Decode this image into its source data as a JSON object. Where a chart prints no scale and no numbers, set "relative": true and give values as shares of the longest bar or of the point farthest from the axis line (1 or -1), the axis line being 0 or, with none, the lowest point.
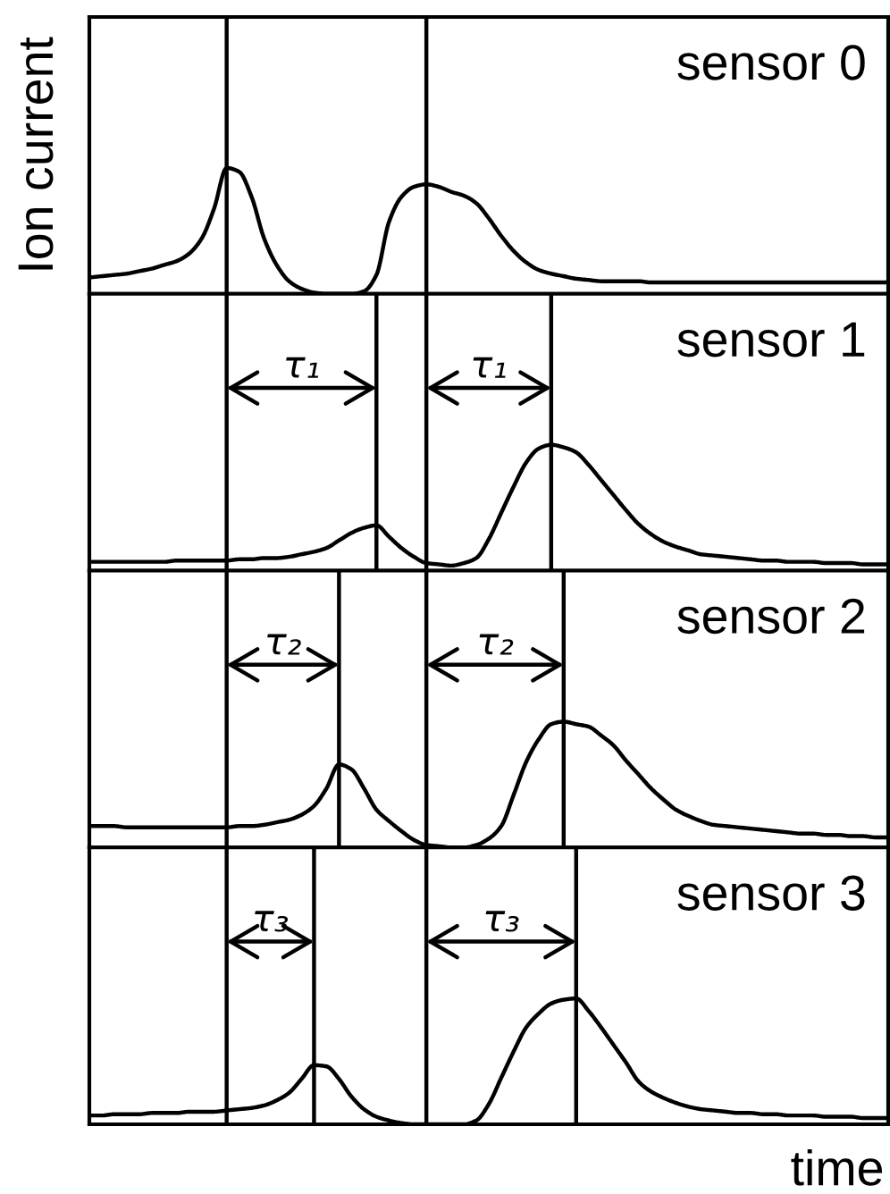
{
  "chart_data": [
    {
      "type": "line",
      "relative": true,
      "grid": "x",
      "title": "sensor 0",
      "ylabel": "Ion current",
      "categories": [
        null,
        null,
        null,
        null,
        null,
        null,
        null,
        null,
        null,
        null,
        null,
        null,
        null,
        null,
        null,
        null,
        null,
        null,
        null,
        null,
        null,
        null,
        null,
        null,
        null,
        null,
        null,
        null,
        null,
        null,
        null,
        null,
        null,
        null,
        null,
        null,
        null,
        null,
        null,
        null,
        null,
        null,
        null,
        null,
        null,
        null,
        null,
        null,
        null,
        null,
        null,
        null,
        null,
        null,
        null,
        null,
        null,
        null,
        null,
        null,
        null,
        null,
        null,
        null,
        null
      ],
      "series": [
        {
          "color": "#000000",
          "values": [
            0.13,
            0.14,
            0.15,
            0.16,
            0.18,
            0.2,
            0.23,
            0.26,
            0.32,
            0.44,
            0.68,
            1.0,
            0.97,
            0.77,
            0.44,
            0.23,
            0.1,
            0.04,
            0.01,
            0,
            0,
            0,
            0.02,
            0.15,
            0.57,
            0.77,
            0.85,
            0.87,
            0.85,
            0.81,
            0.78,
            0.72,
            0.6,
            0.46,
            0.34,
            0.25,
            0.19,
            0.16,
            0.14,
            0.12,
            0.11,
            0.1,
            0.1,
            0.1,
            0.1,
            0.09,
            0.09,
            0.09,
            0.09,
            0.09,
            0.09,
            0.09,
            0.09,
            0.09,
            0.09,
            0.09,
            0.09,
            0.09,
            0.09,
            0.09,
            0.09,
            0.09,
            0.09,
            0.09,
            0.09
          ]
        }
      ]
    },
    {
      "type": "line",
      "relative": true,
      "grid": "x",
      "title": "sensor 1",
      "annotations": [
        "τ₁",
        "τ₁"
      ],
      "categories": [
        null,
        null,
        null,
        null,
        null,
        null,
        null,
        null,
        null,
        null,
        null,
        null,
        null,
        null,
        null,
        null,
        null,
        null,
        null,
        null,
        null,
        null,
        null,
        null,
        null,
        null,
        null,
        null,
        null,
        null,
        null,
        null,
        null,
        null,
        null,
        null,
        null,
        null,
        null,
        null,
        null,
        null,
        null,
        null,
        null,
        null,
        null,
        null,
        null,
        null,
        null,
        null,
        null,
        null,
        null,
        null,
        null,
        null,
        null,
        null,
        null,
        null,
        null,
        null,
        null
      ],
      "series": [
        {
          "color": "#000000",
          "values": [
            0.07,
            0.07,
            0.07,
            0.07,
            0.07,
            0.07,
            0.07,
            0.08,
            0.08,
            0.08,
            0.08,
            0.08,
            0.09,
            0.09,
            0.1,
            0.1,
            0.11,
            0.13,
            0.15,
            0.18,
            0.24,
            0.3,
            0.34,
            0.36,
            0.27,
            0.18,
            0.11,
            0.06,
            0.05,
            0.04,
            0.06,
            0.1,
            0.25,
            0.46,
            0.67,
            0.86,
            0.97,
            1.0,
            0.98,
            0.94,
            0.84,
            0.72,
            0.6,
            0.48,
            0.37,
            0.29,
            0.23,
            0.19,
            0.16,
            0.13,
            0.12,
            0.11,
            0.1,
            0.09,
            0.08,
            0.08,
            0.07,
            0.07,
            0.07,
            0.06,
            0.06,
            0.06,
            0.05,
            0.05,
            0.05
          ]
        }
      ]
    },
    {
      "type": "line",
      "relative": true,
      "grid": "x",
      "title": "sensor 2",
      "annotations": [
        "τ₂",
        "τ₂"
      ],
      "categories": [
        null,
        null,
        null,
        null,
        null,
        null,
        null,
        null,
        null,
        null,
        null,
        null,
        null,
        null,
        null,
        null,
        null,
        null,
        null,
        null,
        null,
        null,
        null,
        null,
        null,
        null,
        null,
        null,
        null,
        null,
        null,
        null,
        null,
        null,
        null,
        null,
        null,
        null,
        null,
        null,
        null,
        null,
        null,
        null,
        null,
        null,
        null,
        null,
        null,
        null,
        null,
        null,
        null,
        null,
        null,
        null,
        null,
        null,
        null,
        null,
        null,
        null,
        null,
        null,
        null
      ],
      "series": [
        {
          "color": "#000000",
          "values": [
            0.17,
            0.17,
            0.17,
            0.16,
            0.16,
            0.16,
            0.16,
            0.16,
            0.16,
            0.16,
            0.16,
            0.16,
            0.17,
            0.17,
            0.18,
            0.2,
            0.22,
            0.26,
            0.33,
            0.47,
            0.66,
            0.62,
            0.47,
            0.3,
            0.21,
            0.13,
            0.06,
            0.02,
            0.01,
            0,
            0,
            0.02,
            0.07,
            0.17,
            0.42,
            0.68,
            0.86,
            0.98,
            1.0,
            0.98,
            0.96,
            0.89,
            0.81,
            0.69,
            0.58,
            0.47,
            0.38,
            0.3,
            0.25,
            0.21,
            0.18,
            0.17,
            0.16,
            0.15,
            0.14,
            0.13,
            0.12,
            0.11,
            0.11,
            0.1,
            0.1,
            0.09,
            0.09,
            0.08,
            0.08
          ]
        }
      ]
    },
    {
      "type": "line",
      "relative": true,
      "grid": "x",
      "title": "sensor 3",
      "xlabel": "time",
      "annotations": [
        "τ₃",
        "τ₃"
      ],
      "categories": [
        null,
        null,
        null,
        null,
        null,
        null,
        null,
        null,
        null,
        null,
        null,
        null,
        null,
        null,
        null,
        null,
        null,
        null,
        null,
        null,
        null,
        null,
        null,
        null,
        null,
        null,
        null,
        null,
        null,
        null,
        null,
        null,
        null,
        null,
        null,
        null,
        null,
        null,
        null,
        null,
        null,
        null,
        null,
        null,
        null,
        null,
        null,
        null,
        null,
        null,
        null,
        null,
        null,
        null,
        null,
        null,
        null,
        null,
        null,
        null,
        null,
        null,
        null,
        null,
        null
      ],
      "series": [
        {
          "color": "#000000",
          "values": [
            0.07,
            0.07,
            0.08,
            0.08,
            0.08,
            0.09,
            0.09,
            0.09,
            0.1,
            0.1,
            0.1,
            0.11,
            0.12,
            0.13,
            0.15,
            0.19,
            0.25,
            0.36,
            0.47,
            0.46,
            0.36,
            0.22,
            0.12,
            0.06,
            0.03,
            0.01,
            0,
            0,
            0,
            0,
            0,
            0.03,
            0.16,
            0.37,
            0.58,
            0.77,
            0.88,
            0.96,
            0.99,
            1.0,
            0.9,
            0.77,
            0.63,
            0.49,
            0.34,
            0.26,
            0.21,
            0.17,
            0.14,
            0.12,
            0.11,
            0.1,
            0.09,
            0.09,
            0.08,
            0.08,
            0.07,
            0.07,
            0.07,
            0.06,
            0.06,
            0.06,
            0.05,
            0.05,
            0.05
          ]
        }
      ]
    }
  ]
}
